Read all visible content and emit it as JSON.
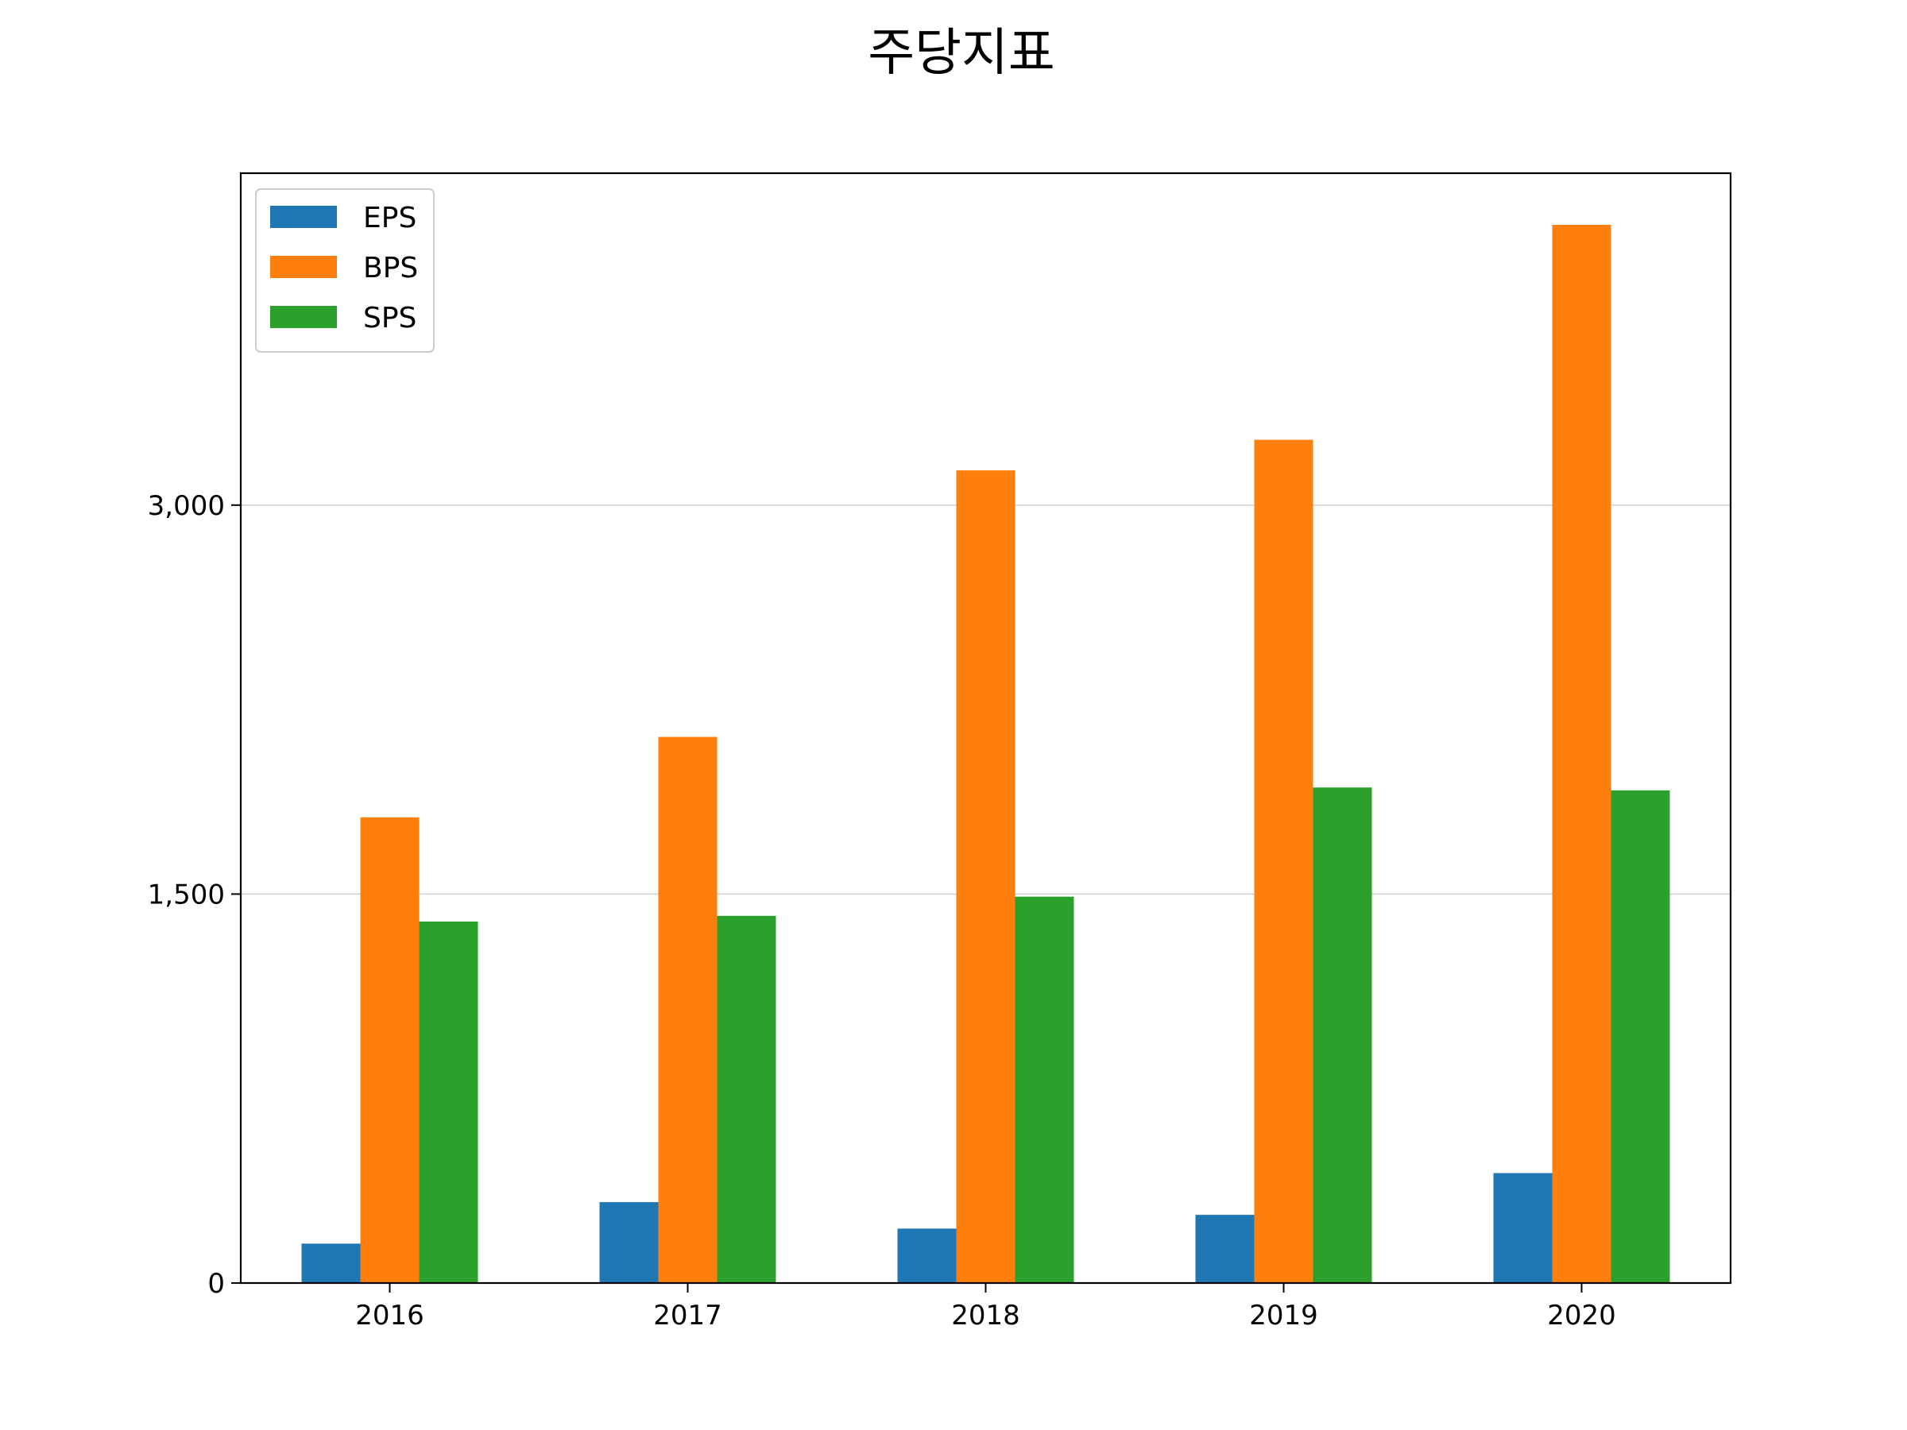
{
  "chart_data": {
    "type": "bar",
    "title": "주당지표",
    "xlabel": "",
    "ylabel": "",
    "categories": [
      "2016",
      "2017",
      "2018",
      "2019",
      "2020"
    ],
    "series": [
      {
        "name": "EPS",
        "color": "#1f77b4",
        "values": [
          152,
          312,
          210,
          263,
          424
        ]
      },
      {
        "name": "BPS",
        "color": "#ff7f0e",
        "values": [
          1796,
          2106,
          3134,
          3252,
          4081
        ]
      },
      {
        "name": "SPS",
        "color": "#2ca02c",
        "values": [
          1394,
          1416,
          1490,
          1911,
          1900
        ]
      }
    ],
    "ylim": [
      0,
      4280
    ],
    "yticks": [
      0,
      1500,
      3000
    ],
    "ytick_labels": [
      "0",
      "1,500",
      "3,000"
    ],
    "grid": "y",
    "legend_position": "top-left"
  }
}
